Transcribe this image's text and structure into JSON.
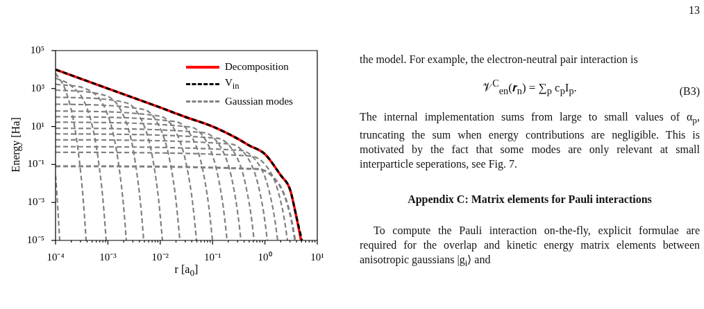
{
  "chart_data": {
    "type": "line",
    "xlabel": "r [a$_{0}$]",
    "ylabel": "Energy [Ha]",
    "log": "xy",
    "legend": "top right",
    "marker": "none",
    "grid": false,
    "xlim": [
      0.0001,
      10
    ],
    "ylim": [
      1e-05,
      100000
    ],
    "xticks": [
      {
        "value": 0.0001,
        "label": "10⁻⁴"
      },
      {
        "value": 0.0002,
        "label": null
      },
      {
        "value": 0.0003,
        "label": null
      },
      {
        "value": 0.0004,
        "label": null
      },
      {
        "value": 0.0005,
        "label": null
      },
      {
        "value": 0.0006,
        "label": null
      },
      {
        "value": 0.0007,
        "label": null
      },
      {
        "value": 0.0008,
        "label": null
      },
      {
        "value": 0.0009,
        "label": null
      },
      {
        "value": 0.001,
        "label": "10⁻³"
      },
      {
        "value": 0.002,
        "label": null
      },
      {
        "value": 0.003,
        "label": null
      },
      {
        "value": 0.004,
        "label": null
      },
      {
        "value": 0.005,
        "label": null
      },
      {
        "value": 0.006,
        "label": null
      },
      {
        "value": 0.007,
        "label": null
      },
      {
        "value": 0.008,
        "label": null
      },
      {
        "value": 0.009,
        "label": null
      },
      {
        "value": 0.01,
        "label": "10⁻²"
      },
      {
        "value": 0.02,
        "label": null
      },
      {
        "value": 0.03,
        "label": null
      },
      {
        "value": 0.04,
        "label": null
      },
      {
        "value": 0.05,
        "label": null
      },
      {
        "value": 0.06,
        "label": null
      },
      {
        "value": 0.07,
        "label": null
      },
      {
        "value": 0.08,
        "label": null
      },
      {
        "value": 0.09,
        "label": null
      },
      {
        "value": 0.1,
        "label": "10⁻¹"
      },
      {
        "value": 0.2,
        "label": null
      },
      {
        "value": 0.3,
        "label": null
      },
      {
        "value": 0.4,
        "label": null
      },
      {
        "value": 0.5,
        "label": null
      },
      {
        "value": 0.6,
        "label": null
      },
      {
        "value": 0.7,
        "label": null
      },
      {
        "value": 0.8,
        "label": null
      },
      {
        "value": 0.9,
        "label": null
      },
      {
        "value": 1,
        "label": "10⁰"
      },
      {
        "value": 2,
        "label": null
      },
      {
        "value": 3,
        "label": null
      },
      {
        "value": 4,
        "label": null
      },
      {
        "value": 5,
        "label": null
      },
      {
        "value": 6,
        "label": null
      },
      {
        "value": 7,
        "label": null
      },
      {
        "value": 8,
        "label": null
      },
      {
        "value": 9,
        "label": null
      },
      {
        "value": 10,
        "label": "10¹"
      }
    ],
    "yticks": [
      {
        "value": 1e-05,
        "label": "10⁻⁵"
      },
      {
        "value": 0.001,
        "label": "10⁻³"
      },
      {
        "value": 0.1,
        "label": "10⁻¹"
      },
      {
        "value": 10,
        "label": "10¹"
      },
      {
        "value": 1000,
        "label": "10³"
      },
      {
        "value": 100000,
        "label": "10⁵"
      }
    ],
    "series": [
      {
        "name": "Decomposition",
        "color": "#ff0000",
        "line_style": "solid",
        "x": [
          0.0001,
          0.001,
          0.01,
          0.03,
          0.1,
          0.3,
          0.5,
          1,
          2,
          3,
          4,
          4.9
        ],
        "values": [
          10000,
          1000,
          100,
          32,
          10,
          2.3,
          1.0,
          0.35,
          0.027,
          0.005,
          0.00017,
          1e-05
        ]
      },
      {
        "name": "V$_{in}$",
        "color": "#000000",
        "line_style": "dashed",
        "x": [
          0.0001,
          0.001,
          0.01,
          0.03,
          0.1,
          0.3,
          0.5,
          1,
          2,
          3,
          4,
          5.1
        ],
        "values": [
          10000,
          1000,
          100,
          32,
          10,
          2.3,
          1.0,
          0.35,
          0.027,
          0.005,
          0.00017,
          1e-05
        ]
      },
      {
        "name": "Gaussian modes",
        "color": "#808080",
        "line_style": "dashed",
        "x": [
          0.0001,
          0.752,
          1.504,
          2.256,
          3.008,
          3.384,
          3.76
        ],
        "values": [
          0.081,
          0.057,
          0.019,
          0.0032,
          0.00026,
          5.5e-05,
          1e-05
        ]
      },
      {
        "color": "#808080",
        "line_style": "dashed",
        "x": [
          0.0001,
          0.538,
          1.076,
          1.614,
          2.152,
          2.421,
          2.69
        ],
        "values": [
          0.44,
          0.28,
          0.079,
          0.0093,
          0.00047,
          7.6e-05,
          1e-05
        ]
      },
      {
        "color": "#808080",
        "line_style": "dashed",
        "x": [
          0.0001,
          0.35,
          0.7,
          1.05,
          1.4,
          1.575,
          1.75
        ],
        "values": [
          0.87,
          0.55,
          0.14,
          0.015,
          0.0006,
          8.7e-05,
          1e-05
        ]
      },
      {
        "color": "#808080",
        "line_style": "dashed",
        "x": [
          0.0001,
          0.222,
          0.444,
          0.666,
          0.888,
          0.999,
          1.11
        ],
        "values": [
          2.0,
          1.2,
          0.28,
          0.025,
          0.00081,
          0.0001,
          1e-05
        ]
      },
      {
        "color": "#808080",
        "line_style": "dashed",
        "x": [
          0.0001,
          0.124,
          0.248,
          0.373,
          0.497,
          0.559,
          0.621
        ],
        "values": [
          4.1,
          2.4,
          0.52,
          0.039,
          0.001,
          0.00012,
          1e-05
        ]
      },
      {
        "color": "#808080",
        "line_style": "dashed",
        "x": [
          0.0001,
          0.0696,
          0.139,
          0.209,
          0.278,
          0.313,
          0.348
        ],
        "values": [
          8.1,
          4.7,
          0.92,
          0.061,
          0.0013,
          0.00013,
          1e-05
        ]
      },
      {
        "color": "#808080",
        "line_style": "dashed",
        "x": [
          0.0001,
          0.0378,
          0.0756,
          0.113,
          0.151,
          0.17,
          0.189
        ],
        "values": [
          17,
          9.4,
          1.7,
          0.096,
          0.0017,
          0.00015,
          1e-05
        ]
      },
      {
        "color": "#808080",
        "line_style": "dashed",
        "x": [
          0.0001,
          0.0199,
          0.0397,
          0.0596,
          0.0794,
          0.0894,
          0.0993
        ],
        "values": [
          33,
          18,
          3.0,
          0.15,
          0.0022,
          0.00017,
          1e-05
        ]
      },
      {
        "color": "#808080",
        "line_style": "dashed",
        "x": [
          0.0001,
          0.00984,
          0.0197,
          0.0295,
          0.0394,
          0.0443,
          0.0492
        ],
        "values": [
          66,
          35,
          5.4,
          0.23,
          0.0029,
          0.0002,
          1e-05
        ]
      },
      {
        "color": "#808080",
        "line_style": "dashed",
        "x": [
          0.0001,
          0.00474,
          0.00948,
          0.0142,
          0.019,
          0.0213,
          0.0237
        ],
        "values": [
          150,
          80,
          11,
          0.4,
          0.0039,
          0.00023,
          1e-05
        ]
      },
      {
        "color": "#808080",
        "line_style": "dashed",
        "x": [
          0.0001,
          0.0022,
          0.0044,
          0.0066,
          0.0088,
          0.0099,
          0.011
        ],
        "values": [
          350,
          180,
          22,
          0.68,
          0.0052,
          0.00027,
          1e-05
        ]
      },
      {
        "color": "#808080",
        "line_style": "dashed",
        "x": [
          0.0001,
          0.000966,
          0.00193,
          0.0029,
          0.00386,
          0.00435,
          0.00483
        ],
        "values": [
          830,
          400,
          45,
          1.2,
          0.0071,
          0.00032,
          1e-05
        ]
      },
      {
        "color": "#808080",
        "line_style": "dashed",
        "x": [
          0.0001,
          0.00045,
          0.0009,
          0.00135,
          0.0018,
          0.00203,
          0.00225
        ],
        "values": [
          1700,
          780,
          80,
          1.8,
          0.0091,
          0.00036,
          1e-05
        ]
      },
      {
        "color": "#808080",
        "line_style": "dashed",
        "x": [
          0.0001,
          0.000186,
          0.000372,
          0.000557,
          0.000743,
          0.000836,
          0.000929
        ],
        "values": [
          3500,
          1600,
          150,
          2.9,
          0.012,
          0.00042,
          1e-05
        ]
      },
      {
        "color": "#808080",
        "line_style": "dashed",
        "x": [
          0.0001,
          0.000154,
          0.00023,
          0.000307,
          0.000346,
          0.000384
        ],
        "values": [
          6300,
          850,
          11,
          0.025,
          0.00062,
          1e-05
        ]
      },
      {
        "color": "#808080",
        "line_style": "dashed",
        "x": [
          0.0001,
          0.00011,
          0.00012
        ],
        "values": [
          0.027,
          0.00062,
          1e-05
        ]
      }
    ],
    "annotations": [
      "13",
      "the model. For example, the electron-neutral pair interaction is",
      "𝒱$^{C}$$_{en}$(𝒓$_{n}$) = ∑$_{p}$ c$_{p}$I$_{p}$.",
      "(B3)",
      "The internal implementation sums from large to small values of α$_{p}$, truncating the sum when energy contributions are negligible. This is motivated by the fact that some modes are only relevant at small interparticle seperations, see Fig. 7.",
      "Appendix C: Matrix elements for Pauli interactions",
      "To compute the Pauli interaction on-the-fly, explicit formulae are required for the overlap and kinetic energy matrix elements between anisotropic gaussians |g$_{i}$⟩ and"
    ]
  }
}
